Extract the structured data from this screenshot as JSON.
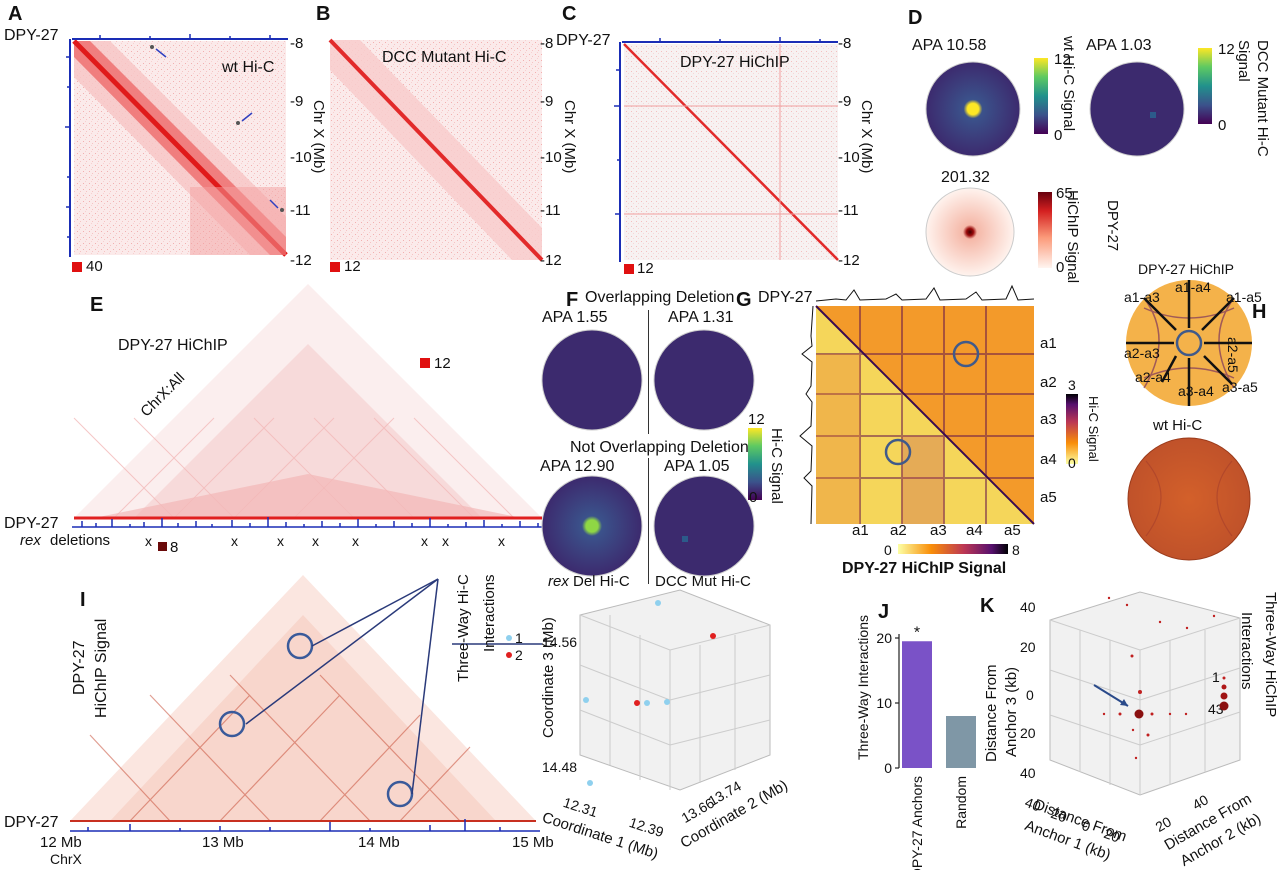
{
  "panels": {
    "A": {
      "letter": "A",
      "label": "wt Hi-C",
      "scale": "40",
      "track": "DPY-27",
      "ticks": [
        "-8",
        "-9",
        "-10",
        "-11",
        "-12"
      ],
      "axis": "Chr X (Mb)"
    },
    "B": {
      "letter": "B",
      "label": "DCC Mutant Hi-C",
      "scale": "12",
      "ticks": [
        "-8",
        "-9",
        "-10",
        "-11",
        "-12"
      ],
      "axis": "Chr X (Mb)"
    },
    "C": {
      "letter": "C",
      "label": "DPY-27 HiChIP",
      "scale": "12",
      "track": "DPY-27",
      "ticks": [
        "-8",
        "-9",
        "-10",
        "-11",
        "-12"
      ],
      "axis": "Chr X (Mb)"
    },
    "D": {
      "letter": "D",
      "apa1": "APA 10.58",
      "apa2": "APA 1.03",
      "apa3": "201.32",
      "cb1_max": "12",
      "cb1_min": "0",
      "cb1_label": "wt Hi-C Signal",
      "cb2_max": "12",
      "cb2_min": "0",
      "cb2_label": "DCC Mutant Hi-C Signal",
      "cb3_max": "65",
      "cb3_min": "0",
      "cb3_label": "HiChIP Signal",
      "cb3_label2": "DPY-27"
    },
    "E": {
      "letter": "E",
      "title": "DPY-27 HiChIP",
      "chrom": "ChrX:All",
      "scale": "12",
      "track": "DPY-27",
      "rex": "rex",
      "deletions": "deletions",
      "x_mark": "x"
    },
    "F": {
      "letter": "F",
      "top_title": "Overlapping Deletion",
      "apa_tl": "APA 1.55",
      "apa_tr": "APA 1.31",
      "bottom_title": "Not Overlapping Deletion",
      "apa_bl": "APA 12.90",
      "apa_br": "APA 1.05",
      "cb_max": "12",
      "cb_min": "0",
      "cb_label": "Hi-C Signal",
      "rex": "rex",
      "left_caption": " Del Hi-C",
      "right_caption": "DCC Mut Hi-C"
    },
    "G": {
      "letter": "G",
      "track": "DPY-27",
      "anchors": [
        "a1",
        "a2",
        "a3",
        "a4",
        "a5"
      ],
      "cb_max": "3",
      "cb_min": "0",
      "cb_label": "Hi-C Signal",
      "h_min": "0",
      "h_max": "8",
      "h_label": "DPY-27 HiChIP Signal"
    },
    "H": {
      "letter": "H",
      "title": "DPY-27 HiChIP",
      "pairs": [
        "a1-a3",
        "a1-a4",
        "a1-a5",
        "a2-a3",
        "a2-a5",
        "a2-a4",
        "a3-a4",
        "a3-a5"
      ],
      "bottom_title": "wt Hi-C"
    },
    "I": {
      "letter": "I",
      "signal_track": "DPY-27",
      "signal_label": "HiChIP Signal",
      "scale": "8",
      "track": "DPY-27",
      "x_ticks": [
        "12 Mb",
        "13 Mb",
        "14 Mb",
        "15 Mb"
      ],
      "chrom": "ChrX",
      "legend_title": "Three-Way Hi-C Interactions",
      "legend_items": [
        "1",
        "2"
      ],
      "z_ticks": [
        "14.56",
        "14.48"
      ],
      "z_label": "Coordinate 3 (Mb)",
      "x1_ticks": [
        "12.31",
        "12.39"
      ],
      "x1_label": "Coordinate 1 (Mb)",
      "x2_ticks": [
        "13.66",
        "13.74"
      ],
      "x2_label": "Coordinate 2 (Mb)"
    },
    "J": {
      "letter": "J",
      "ylabel": "Three-Way Interactions",
      "yticks": [
        "20",
        "10",
        "0"
      ],
      "star": "*"
    },
    "K": {
      "letter": "K",
      "z_ticks": [
        "40",
        "20",
        "0",
        "20",
        "40"
      ],
      "z_label1": "Distance From",
      "z_label2": "Anchor 3 (kb)",
      "a1_ticks": [
        "40",
        "20",
        "0",
        "20"
      ],
      "a1_label1": "Distance From",
      "a1_label2": "Anchor 1 (kb)",
      "a2_ticks": [
        "20",
        "40"
      ],
      "a2_label1": "Distance From",
      "a2_label2": "Anchor 2 (kb)",
      "legend_title1": "Three-Way HiChIP",
      "legend_title2": "Interactions",
      "legend_items": [
        "1",
        "43"
      ]
    }
  },
  "chart_data": {
    "type": "bar",
    "categories": [
      "DPY-27 Anchors",
      "Random"
    ],
    "values": [
      19.5,
      8.0
    ],
    "ylabel": "Three-Way Interactions",
    "ylim": [
      0,
      20
    ],
    "colors": [
      "#7a52c7",
      "#7f97a6"
    ]
  }
}
